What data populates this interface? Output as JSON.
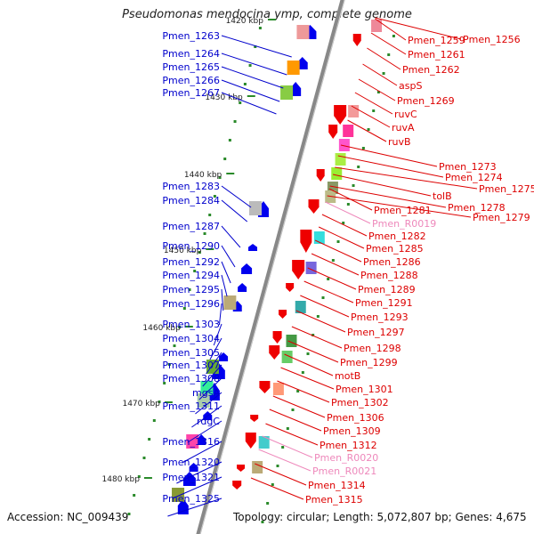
{
  "title": "Pseudomonas mendocina ymp, complete genome",
  "accession": "Accession: NC_009439",
  "summary": "Topology: circular; Length: 5,072,807 bp; Genes: 4,675",
  "colors": {
    "left_label": "#0000cc",
    "right_label": "#dd0000",
    "rna_label": "#ee88bb",
    "axis": "#888888",
    "tick": "#2a8a2a"
  },
  "kbp_marks": [
    "1420 kbp",
    "1430 kbp",
    "1440 kbp",
    "1450 kbp",
    "1460 kbp",
    "1470 kbp",
    "1480 kbp"
  ],
  "left_genes": [
    "Pmen_1263",
    "Pmen_1264",
    "Pmen_1265",
    "Pmen_1266",
    "Pmen_1267",
    "Pmen_1283",
    "Pmen_1284",
    "Pmen_1287",
    "Pmen_1290",
    "Pmen_1292",
    "Pmen_1294",
    "Pmen_1295",
    "Pmen_1296",
    "Pmen_1303",
    "Pmen_1304",
    "Pmen_1305",
    "Pmen_1307",
    "Pmen_1308",
    "mgsA",
    "Pmen_1311",
    "rdgC",
    "Pmen_1316",
    "Pmen_1320",
    "Pmen_1321",
    "Pmen_1325"
  ],
  "right_genes": [
    "Pmen_1256",
    "Pmen_1259",
    "Pmen_1261",
    "Pmen_1262",
    "aspS",
    "Pmen_1269",
    "ruvC",
    "ruvA",
    "ruvB",
    "Pmen_1273",
    "Pmen_1274",
    "Pmen_1275",
    "tolB",
    "Pmen_1278",
    "Pmen_1279",
    "Pmen_1281",
    "Pmen_R0019",
    "Pmen_1282",
    "Pmen_1285",
    "Pmen_1286",
    "Pmen_1288",
    "Pmen_1289",
    "Pmen_1291",
    "Pmen_1293",
    "Pmen_1297",
    "Pmen_1298",
    "Pmen_1299",
    "motB",
    "Pmen_1301",
    "Pmen_1302",
    "Pmen_1306",
    "Pmen_1309",
    "Pmen_1312",
    "Pmen_R0020",
    "Pmen_R0021",
    "Pmen_1314",
    "Pmen_1315"
  ],
  "rna_genes": [
    "Pmen_R0019",
    "Pmen_R0020",
    "Pmen_R0021"
  ]
}
